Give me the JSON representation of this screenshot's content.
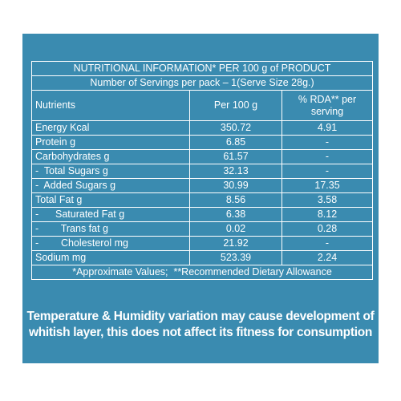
{
  "title": "NUTRITIONAL INFORMATION* PER 100 g of PRODUCT",
  "servings": "Number of Servings per pack – 1(Serve Size 28g.)",
  "headers": {
    "nutrients": "Nutrients",
    "per100": "Per 100 g",
    "rda": "% RDA** per serving"
  },
  "rows": [
    {
      "name": "Energy Kcal",
      "per100": "350.72",
      "rda": "4.91"
    },
    {
      "name": "Protein g",
      "per100": "6.85",
      "rda": "-"
    },
    {
      "name": "Carbohydrates g",
      "per100": "61.57",
      "rda": "-"
    },
    {
      "name": "-  Total Sugars g",
      "per100": "32.13",
      "rda": "-"
    },
    {
      "name": "-  Added Sugars g",
      "per100": "30.99",
      "rda": "17.35"
    },
    {
      "name": "Total Fat g",
      "per100": "8.56",
      "rda": "3.58"
    },
    {
      "name": "-      Saturated Fat g",
      "per100": "6.38",
      "rda": "8.12"
    },
    {
      "name": "-        Trans fat g",
      "per100": "0.02",
      "rda": "0.28"
    },
    {
      "name": "-        Cholesterol mg",
      "per100": "21.92",
      "rda": "-"
    },
    {
      "name": "Sodium mg",
      "per100": "523.39",
      "rda": "2.24"
    }
  ],
  "footnote": "*Approximate Values;  **Recommended Dietary Allowance",
  "disclaimer": {
    "line1": "Temperature & Humidity variation may cause development of",
    "line2": "whitish layer, this does not affect its fitness for consumption"
  },
  "colors": {
    "background": "#3a8bb0",
    "text": "#ffffff"
  }
}
